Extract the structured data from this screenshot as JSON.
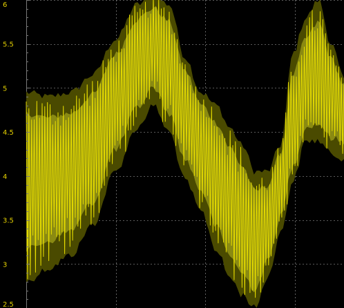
{
  "chart_data": {
    "type": "line",
    "title": "",
    "xlabel": "",
    "ylabel": "",
    "ylim": [
      2.5,
      6.0
    ],
    "yticks": [
      "2.5",
      "3",
      "3.5",
      "4",
      "4.5",
      "5",
      "5.5",
      "6"
    ],
    "ytick_values": [
      2.5,
      3.0,
      3.5,
      4.0,
      4.5,
      5.0,
      5.5,
      6.0
    ],
    "grid": true,
    "legend": "none",
    "colors": {
      "background": "#000000",
      "trace": "#e6dc00",
      "envelope_outer": "#4a4a00",
      "envelope_inner": "#8a8a12",
      "grid": "#7a7a7a",
      "labels": "#e6d200"
    },
    "series": [
      {
        "x": [
          0,
          0.07,
          0.14,
          0.21,
          0.28,
          0.35,
          0.4,
          0.45,
          0.5,
          0.55,
          0.6,
          0.64,
          0.68,
          0.72,
          0.76,
          0.8,
          0.84,
          0.88,
          0.92,
          0.96,
          1.0
        ],
        "center": [
          4.1,
          4.05,
          4.1,
          4.35,
          4.95,
          5.35,
          5.55,
          5.25,
          4.8,
          4.45,
          4.1,
          3.75,
          3.5,
          3.25,
          3.5,
          4.0,
          4.55,
          4.95,
          5.1,
          4.9,
          4.85
        ],
        "lower": [
          2.8,
          2.95,
          3.1,
          3.45,
          4.05,
          4.55,
          4.8,
          4.5,
          3.95,
          3.6,
          3.15,
          2.85,
          2.65,
          2.5,
          2.85,
          3.35,
          3.95,
          4.4,
          4.4,
          4.25,
          4.2
        ],
        "upper": [
          4.95,
          4.9,
          4.95,
          5.15,
          5.55,
          5.95,
          6.05,
          5.95,
          5.35,
          4.95,
          4.8,
          4.55,
          4.35,
          4.05,
          4.05,
          4.35,
          5.4,
          5.8,
          6.0,
          5.5,
          5.1
        ]
      }
    ]
  }
}
